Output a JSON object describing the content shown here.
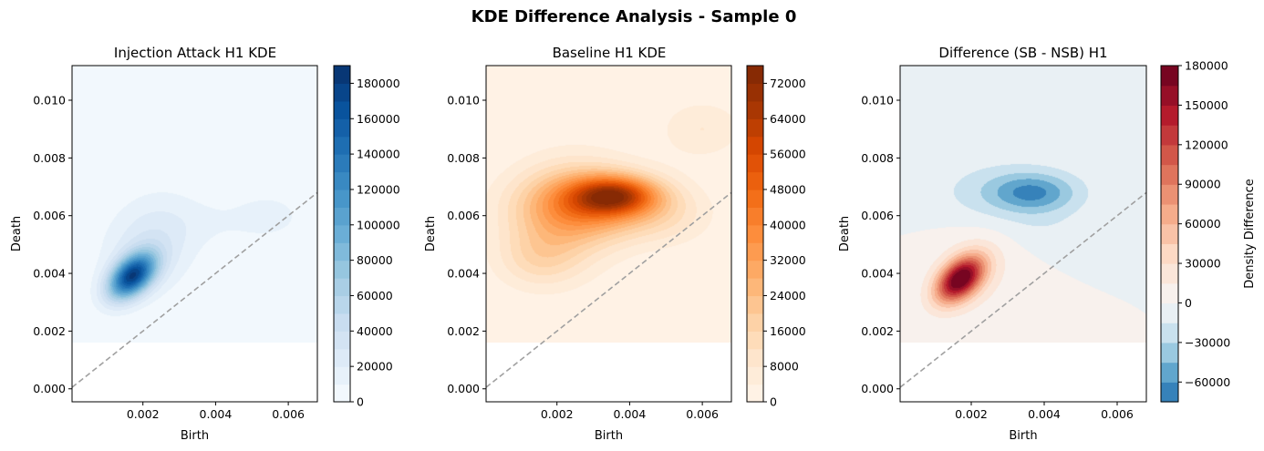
{
  "figure": {
    "suptitle": "KDE Difference Analysis - Sample 0"
  },
  "chart_data": [
    {
      "type": "heatmap",
      "title": "Injection Attack H1 KDE",
      "xlabel": "Birth",
      "ylabel": "Death",
      "xlim": [
        5e-05,
        0.0068
      ],
      "ylim": [
        -0.00045,
        0.0112
      ],
      "x_ticks": [
        "0.002",
        "0.004",
        "0.006"
      ],
      "x_tick_values": [
        0.002,
        0.004,
        0.006
      ],
      "y_ticks": [
        "0.000",
        "0.002",
        "0.004",
        "0.006",
        "0.008",
        "0.010"
      ],
      "y_tick_values": [
        0,
        0.002,
        0.004,
        0.006,
        0.008,
        0.01
      ],
      "grid_y_range": [
        0.0016,
        0.0112
      ],
      "diagonal": {
        "x": [
          5e-05,
          0.0068
        ],
        "y": [
          5e-05,
          0.0068
        ],
        "style": "dashed",
        "color": "#a0a0a0"
      },
      "colormap": "Blues",
      "colorbar": {
        "label": "",
        "min": 0,
        "max": 190000,
        "ticks": [
          "0",
          "20000",
          "40000",
          "60000",
          "80000",
          "100000",
          "120000",
          "140000",
          "160000",
          "180000"
        ],
        "tick_values": [
          0,
          20000,
          40000,
          60000,
          80000,
          100000,
          120000,
          140000,
          160000,
          180000
        ],
        "levels": 19
      },
      "kernels": [
        {
          "x": 0.0017,
          "y": 0.0039,
          "sx": 0.00045,
          "sy": 0.00055,
          "rho": 0.45,
          "amp": 165000
        },
        {
          "x": 0.0022,
          "y": 0.005,
          "sx": 0.0009,
          "sy": 0.0012,
          "rho": 0.2,
          "amp": 30000
        },
        {
          "x": 0.0055,
          "y": 0.006,
          "sx": 0.0006,
          "sy": 0.0005,
          "rho": 0.0,
          "amp": 15000
        },
        {
          "x": 0.0042,
          "y": 0.0058,
          "sx": 0.0009,
          "sy": 0.0006,
          "rho": 0.0,
          "amp": 8000
        }
      ]
    },
    {
      "type": "heatmap",
      "title": "Baseline H1 KDE",
      "xlabel": "Birth",
      "ylabel": "Death",
      "xlim": [
        5e-05,
        0.0068
      ],
      "ylim": [
        -0.00045,
        0.0112
      ],
      "x_ticks": [
        "0.002",
        "0.004",
        "0.006"
      ],
      "x_tick_values": [
        0.002,
        0.004,
        0.006
      ],
      "y_ticks": [
        "0.000",
        "0.002",
        "0.004",
        "0.006",
        "0.008",
        "0.010"
      ],
      "y_tick_values": [
        0,
        0.002,
        0.004,
        0.006,
        0.008,
        0.01
      ],
      "grid_y_range": [
        0.0016,
        0.0112
      ],
      "diagonal": {
        "x": [
          5e-05,
          0.0068
        ],
        "y": [
          5e-05,
          0.0068
        ],
        "style": "dashed",
        "color": "#a0a0a0"
      },
      "colormap": "Oranges",
      "colorbar": {
        "label": "",
        "min": 0,
        "max": 76000,
        "ticks": [
          "0",
          "8000",
          "16000",
          "24000",
          "32000",
          "40000",
          "48000",
          "56000",
          "64000",
          "72000"
        ],
        "tick_values": [
          0,
          8000,
          16000,
          24000,
          32000,
          40000,
          48000,
          56000,
          64000,
          72000
        ],
        "levels": 19
      },
      "kernels": [
        {
          "x": 0.0036,
          "y": 0.0067,
          "sx": 0.0008,
          "sy": 0.00045,
          "rho": 0.0,
          "amp": 45000
        },
        {
          "x": 0.003,
          "y": 0.0064,
          "sx": 0.0013,
          "sy": 0.0008,
          "rho": 0.0,
          "amp": 28000
        },
        {
          "x": 0.0022,
          "y": 0.006,
          "sx": 0.0011,
          "sy": 0.0013,
          "rho": 0.1,
          "amp": 18000
        },
        {
          "x": 0.0015,
          "y": 0.0045,
          "sx": 0.0008,
          "sy": 0.0007,
          "rho": 0.0,
          "amp": 10000
        },
        {
          "x": 0.006,
          "y": 0.009,
          "sx": 0.0008,
          "sy": 0.0007,
          "rho": 0.0,
          "amp": 8000
        },
        {
          "x": 0.005,
          "y": 0.006,
          "sx": 0.0009,
          "sy": 0.0007,
          "rho": 0.0,
          "amp": 8000
        }
      ]
    },
    {
      "type": "heatmap",
      "title": "Difference (SB - NSB) H1",
      "xlabel": "Birth",
      "ylabel": "Death",
      "xlim": [
        5e-05,
        0.0068
      ],
      "ylim": [
        -0.00045,
        0.0112
      ],
      "x_ticks": [
        "0.002",
        "0.004",
        "0.006"
      ],
      "x_tick_values": [
        0.002,
        0.004,
        0.006
      ],
      "y_ticks": [
        "0.000",
        "0.002",
        "0.004",
        "0.006",
        "0.008",
        "0.010"
      ],
      "y_tick_values": [
        0,
        0.002,
        0.004,
        0.006,
        0.008,
        0.01
      ],
      "grid_y_range": [
        0.0016,
        0.0112
      ],
      "diagonal": {
        "x": [
          5e-05,
          0.0068
        ],
        "y": [
          5e-05,
          0.0068
        ],
        "style": "dashed",
        "color": "#a0a0a0"
      },
      "colormap": "RdBu_r",
      "colorbar": {
        "label": "Density Difference",
        "min": -75000,
        "max": 180000,
        "ticks": [
          "−60000",
          "−30000",
          "0",
          "30000",
          "60000",
          "90000",
          "120000",
          "150000",
          "180000"
        ],
        "tick_values": [
          -60000,
          -30000,
          0,
          30000,
          60000,
          90000,
          120000,
          150000,
          180000
        ],
        "levels": 17
      },
      "kernels": [
        {
          "x": 0.0017,
          "y": 0.0038,
          "sx": 0.00045,
          "sy": 0.00055,
          "rho": 0.45,
          "amp": 175000
        },
        {
          "x": 0.002,
          "y": 0.004,
          "sx": 0.0009,
          "sy": 0.0011,
          "rho": 0.2,
          "amp": 20000
        },
        {
          "x": 0.0037,
          "y": 0.0068,
          "sx": 0.0008,
          "sy": 0.00045,
          "rho": 0.0,
          "amp": -45000
        },
        {
          "x": 0.003,
          "y": 0.0068,
          "sx": 0.0014,
          "sy": 0.0008,
          "rho": 0.0,
          "amp": -25000
        },
        {
          "x": 0.004,
          "y": 0.0055,
          "sx": 0.0008,
          "sy": 0.0006,
          "rho": 0.0,
          "amp": -8000
        }
      ]
    }
  ]
}
